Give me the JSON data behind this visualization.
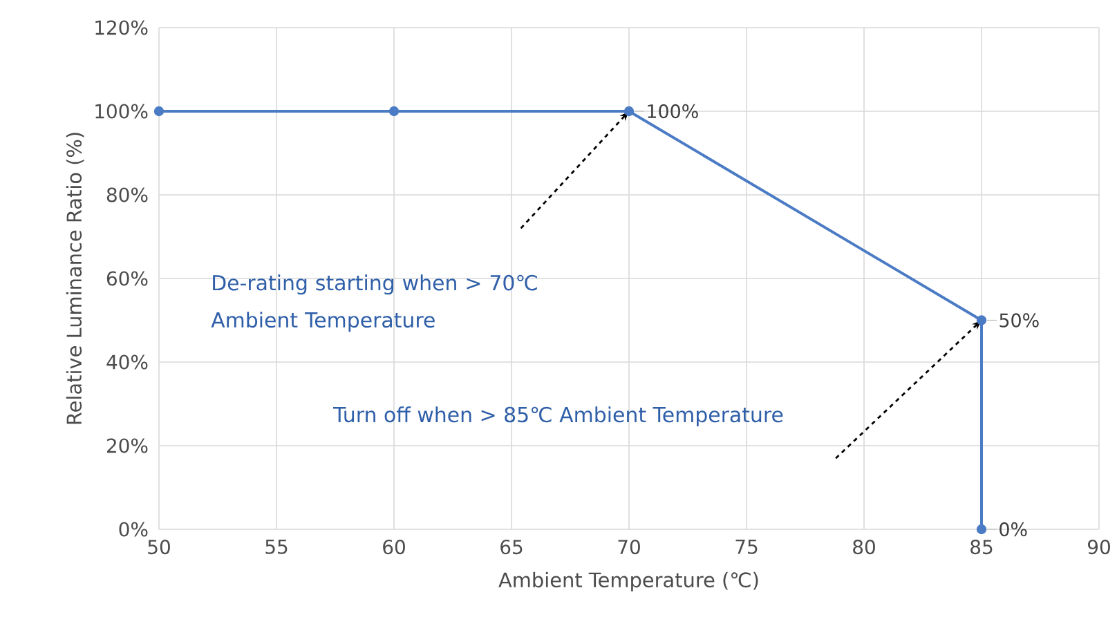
{
  "chart_data": {
    "type": "line",
    "xlabel": "Ambient Temperature (℃)",
    "ylabel": "Relative Luminance Ratio (%)",
    "x": [
      50,
      60,
      70,
      85,
      85
    ],
    "values": [
      100,
      100,
      100,
      50,
      0
    ],
    "value_labels": [
      null,
      null,
      "100%",
      "50%",
      "0%"
    ],
    "color": "#4a7bc4",
    "marker": "circle",
    "line_style": "solid",
    "grid": true,
    "legend": false,
    "xlim": [
      50,
      90
    ],
    "xticks": [
      50,
      55,
      60,
      65,
      70,
      75,
      80,
      85,
      90
    ],
    "ylim": [
      0,
      120
    ],
    "yticks": [
      {
        "value": 0,
        "label": "0%"
      },
      {
        "value": 20,
        "label": "20%"
      },
      {
        "value": 40,
        "label": "40%"
      },
      {
        "value": 60,
        "label": "60%"
      },
      {
        "value": 80,
        "label": "80%"
      },
      {
        "value": 100,
        "label": "100%"
      },
      {
        "value": 120,
        "label": "120%"
      }
    ],
    "annotations": [
      "De-rating starting when > 70℃ Ambient Temperature",
      "Turn off when > 85℃ Ambient Temperature"
    ]
  }
}
